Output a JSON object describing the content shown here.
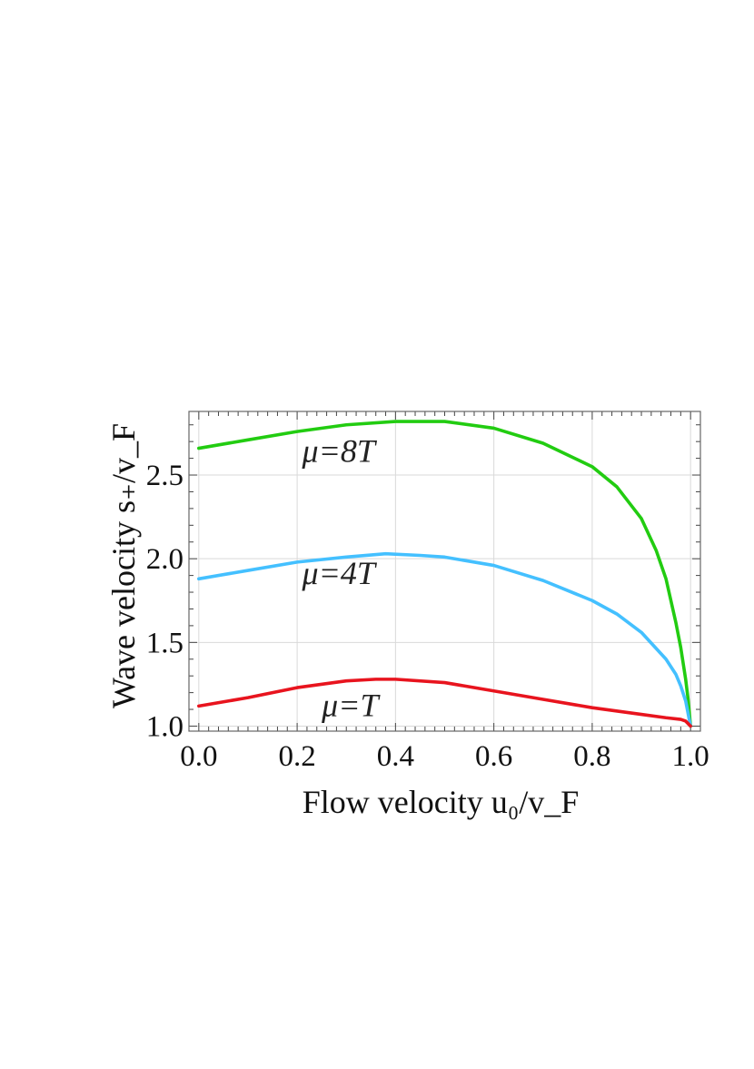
{
  "chart_data": {
    "type": "line",
    "title": "",
    "xlabel": "Flow velocity u₀/v_F",
    "ylabel": "Wave velocity s₊/v_F",
    "xlim": [
      -0.02,
      1.02
    ],
    "ylim": [
      0.97,
      2.88
    ],
    "xticks": [
      0.0,
      0.2,
      0.4,
      0.6,
      0.8,
      1.0
    ],
    "xtick_labels": [
      "0.0",
      "0.2",
      "0.4",
      "0.6",
      "0.8",
      "1.0"
    ],
    "yticks": [
      1.0,
      1.5,
      2.0,
      2.5
    ],
    "ytick_labels": [
      "1.0",
      "1.5",
      "2.0",
      "2.5"
    ],
    "grid": true,
    "series": [
      {
        "name": "μ=8T",
        "color": "#22cc11",
        "x": [
          0.0,
          0.1,
          0.2,
          0.3,
          0.4,
          0.45,
          0.5,
          0.6,
          0.7,
          0.8,
          0.85,
          0.9,
          0.93,
          0.95,
          0.97,
          0.98,
          0.99,
          0.995,
          1.0
        ],
        "y": [
          2.66,
          2.71,
          2.76,
          2.8,
          2.82,
          2.82,
          2.82,
          2.78,
          2.69,
          2.55,
          2.43,
          2.24,
          2.05,
          1.88,
          1.62,
          1.47,
          1.28,
          1.16,
          1.0
        ]
      },
      {
        "name": "μ=4T",
        "color": "#44c0ff",
        "x": [
          0.0,
          0.1,
          0.2,
          0.3,
          0.38,
          0.45,
          0.5,
          0.6,
          0.7,
          0.8,
          0.85,
          0.9,
          0.95,
          0.97,
          0.98,
          0.99,
          1.0
        ],
        "y": [
          1.88,
          1.93,
          1.98,
          2.01,
          2.03,
          2.02,
          2.01,
          1.96,
          1.87,
          1.75,
          1.67,
          1.56,
          1.4,
          1.31,
          1.24,
          1.15,
          1.0
        ]
      },
      {
        "name": "μ=T",
        "color": "#e8141e",
        "x": [
          0.0,
          0.1,
          0.2,
          0.3,
          0.36,
          0.4,
          0.5,
          0.6,
          0.7,
          0.8,
          0.9,
          0.95,
          0.98,
          0.99,
          1.0
        ],
        "y": [
          1.12,
          1.17,
          1.23,
          1.27,
          1.28,
          1.28,
          1.26,
          1.21,
          1.16,
          1.11,
          1.07,
          1.05,
          1.04,
          1.03,
          1.0
        ]
      }
    ]
  }
}
